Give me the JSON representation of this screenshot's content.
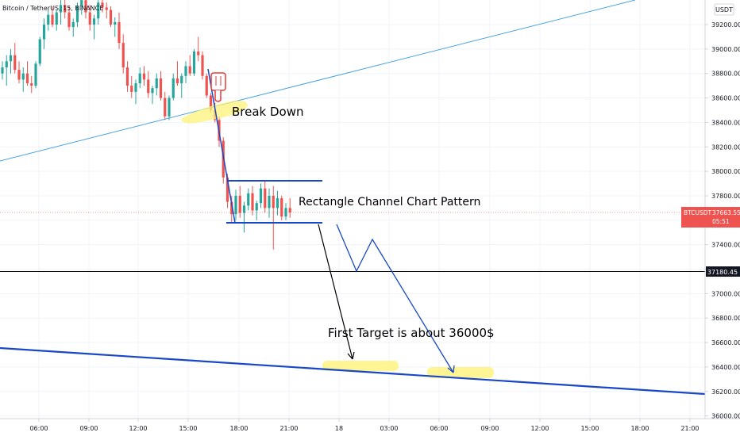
{
  "header": {
    "title": "Bitcoin / TetherUS, 15, BINANCE",
    "currency": "USDT"
  },
  "price_badge": {
    "symbol": "BTCUSDT",
    "price": "37663.55",
    "countdown": "05:51",
    "color": "#ef5350"
  },
  "level_badge": {
    "value": "37180.45"
  },
  "annotations": {
    "break_down": "Break Down",
    "channel": "Rectangle Channel Chart Pattern",
    "target": "First Target is about 36000$"
  },
  "colors": {
    "up": "#26a69a",
    "down": "#ef5350",
    "trend_line": "#4aa3df",
    "drawing": "#1848c6",
    "highlight": "#fff37a"
  },
  "icons": {
    "pointer": "hand-pointing-down-icon"
  },
  "chart_data": {
    "type": "candlestick",
    "y_axis": {
      "ticks": [
        "39200.00",
        "39000.00",
        "38800.00",
        "38600.00",
        "38400.00",
        "38200.00",
        "38000.00",
        "37800.00",
        "37600.00",
        "37400.00",
        "37200.00",
        "37000.00",
        "36800.00",
        "36600.00",
        "36400.00",
        "36200.00",
        "36000.00"
      ],
      "ylim": [
        35950,
        39420
      ]
    },
    "x_axis": {
      "ticks": [
        "06:00",
        "09:00",
        "12:00",
        "15:00",
        "18:00",
        "21:00",
        "18",
        "03:00",
        "06:00",
        "09:00",
        "12:00",
        "15:00",
        "18:00",
        "21:00"
      ]
    },
    "candles": [
      {
        "o": 38800,
        "h": 38900,
        "l": 38750,
        "c": 38850
      },
      {
        "o": 38850,
        "h": 38950,
        "l": 38700,
        "c": 38900
      },
      {
        "o": 38900,
        "h": 39000,
        "l": 38800,
        "c": 38950
      },
      {
        "o": 38950,
        "h": 39050,
        "l": 38800,
        "c": 38830
      },
      {
        "o": 38830,
        "h": 38900,
        "l": 38720,
        "c": 38750
      },
      {
        "o": 38750,
        "h": 38850,
        "l": 38650,
        "c": 38800
      },
      {
        "o": 38800,
        "h": 38900,
        "l": 38700,
        "c": 38720
      },
      {
        "o": 38720,
        "h": 38780,
        "l": 38640,
        "c": 38700
      },
      {
        "o": 38700,
        "h": 38900,
        "l": 38680,
        "c": 38880
      },
      {
        "o": 38880,
        "h": 39100,
        "l": 38860,
        "c": 39080
      },
      {
        "o": 39080,
        "h": 39250,
        "l": 39000,
        "c": 39200
      },
      {
        "o": 39200,
        "h": 39320,
        "l": 39150,
        "c": 39280
      },
      {
        "o": 39280,
        "h": 39350,
        "l": 39180,
        "c": 39200
      },
      {
        "o": 39200,
        "h": 39320,
        "l": 39150,
        "c": 39300
      },
      {
        "o": 39300,
        "h": 39400,
        "l": 39200,
        "c": 39360
      },
      {
        "o": 39360,
        "h": 39410,
        "l": 39250,
        "c": 39300
      },
      {
        "o": 39300,
        "h": 39350,
        "l": 39150,
        "c": 39180
      },
      {
        "o": 39180,
        "h": 39250,
        "l": 39100,
        "c": 39220
      },
      {
        "o": 39220,
        "h": 39380,
        "l": 39180,
        "c": 39350
      },
      {
        "o": 39350,
        "h": 39420,
        "l": 39280,
        "c": 39400
      },
      {
        "o": 39400,
        "h": 39420,
        "l": 39250,
        "c": 39300
      },
      {
        "o": 39300,
        "h": 39360,
        "l": 39150,
        "c": 39200
      },
      {
        "o": 39200,
        "h": 39280,
        "l": 39080,
        "c": 39250
      },
      {
        "o": 39250,
        "h": 39400,
        "l": 39200,
        "c": 39380
      },
      {
        "o": 39380,
        "h": 39420,
        "l": 39300,
        "c": 39340
      },
      {
        "o": 39340,
        "h": 39380,
        "l": 39250,
        "c": 39320
      },
      {
        "o": 39320,
        "h": 39350,
        "l": 39180,
        "c": 39200
      },
      {
        "o": 39200,
        "h": 39260,
        "l": 39100,
        "c": 39220
      },
      {
        "o": 39220,
        "h": 39300,
        "l": 39000,
        "c": 39050
      },
      {
        "o": 39050,
        "h": 39120,
        "l": 38800,
        "c": 38850
      },
      {
        "o": 38850,
        "h": 38900,
        "l": 38650,
        "c": 38700
      },
      {
        "o": 38700,
        "h": 38780,
        "l": 38600,
        "c": 38650
      },
      {
        "o": 38650,
        "h": 38750,
        "l": 38550,
        "c": 38720
      },
      {
        "o": 38720,
        "h": 38850,
        "l": 38680,
        "c": 38800
      },
      {
        "o": 38800,
        "h": 38860,
        "l": 38700,
        "c": 38750
      },
      {
        "o": 38750,
        "h": 38820,
        "l": 38600,
        "c": 38640
      },
      {
        "o": 38640,
        "h": 38700,
        "l": 38550,
        "c": 38680
      },
      {
        "o": 38680,
        "h": 38800,
        "l": 38620,
        "c": 38760
      },
      {
        "o": 38760,
        "h": 38820,
        "l": 38580,
        "c": 38600
      },
      {
        "o": 38600,
        "h": 38650,
        "l": 38420,
        "c": 38450
      },
      {
        "o": 38450,
        "h": 38620,
        "l": 38420,
        "c": 38600
      },
      {
        "o": 38600,
        "h": 38800,
        "l": 38580,
        "c": 38760
      },
      {
        "o": 38760,
        "h": 38900,
        "l": 38700,
        "c": 38720
      },
      {
        "o": 38720,
        "h": 38800,
        "l": 38600,
        "c": 38780
      },
      {
        "o": 38780,
        "h": 38900,
        "l": 38720,
        "c": 38860
      },
      {
        "o": 38860,
        "h": 38950,
        "l": 38780,
        "c": 38800
      },
      {
        "o": 38800,
        "h": 39000,
        "l": 38780,
        "c": 38980
      },
      {
        "o": 38980,
        "h": 39100,
        "l": 38900,
        "c": 38950
      },
      {
        "o": 38950,
        "h": 38980,
        "l": 38750,
        "c": 38780
      },
      {
        "o": 38780,
        "h": 38800,
        "l": 38600,
        "c": 38620
      },
      {
        "o": 38620,
        "h": 38640,
        "l": 38480,
        "c": 38500
      },
      {
        "o": 38500,
        "h": 38560,
        "l": 38400,
        "c": 38420
      },
      {
        "o": 38420,
        "h": 38450,
        "l": 38200,
        "c": 38250
      },
      {
        "o": 38250,
        "h": 38280,
        "l": 37900,
        "c": 37950
      },
      {
        "o": 37950,
        "h": 37980,
        "l": 37700,
        "c": 37750
      },
      {
        "o": 37750,
        "h": 37800,
        "l": 37580,
        "c": 37650
      },
      {
        "o": 37650,
        "h": 37850,
        "l": 37600,
        "c": 37800
      },
      {
        "o": 37800,
        "h": 37880,
        "l": 37620,
        "c": 37660
      },
      {
        "o": 37660,
        "h": 37750,
        "l": 37500,
        "c": 37720
      },
      {
        "o": 37720,
        "h": 37860,
        "l": 37680,
        "c": 37820
      },
      {
        "o": 37820,
        "h": 37880,
        "l": 37640,
        "c": 37680
      },
      {
        "o": 37680,
        "h": 37760,
        "l": 37600,
        "c": 37740
      },
      {
        "o": 37740,
        "h": 37900,
        "l": 37700,
        "c": 37860
      },
      {
        "o": 37860,
        "h": 37920,
        "l": 37660,
        "c": 37700
      },
      {
        "o": 37700,
        "h": 37860,
        "l": 37620,
        "c": 37800
      },
      {
        "o": 37800,
        "h": 37880,
        "l": 37360,
        "c": 37700
      },
      {
        "o": 37700,
        "h": 37840,
        "l": 37640,
        "c": 37780
      },
      {
        "o": 37780,
        "h": 37800,
        "l": 37600,
        "c": 37630
      },
      {
        "o": 37630,
        "h": 37740,
        "l": 37600,
        "c": 37700
      },
      {
        "o": 37700,
        "h": 37780,
        "l": 37620,
        "c": 37664
      }
    ]
  }
}
